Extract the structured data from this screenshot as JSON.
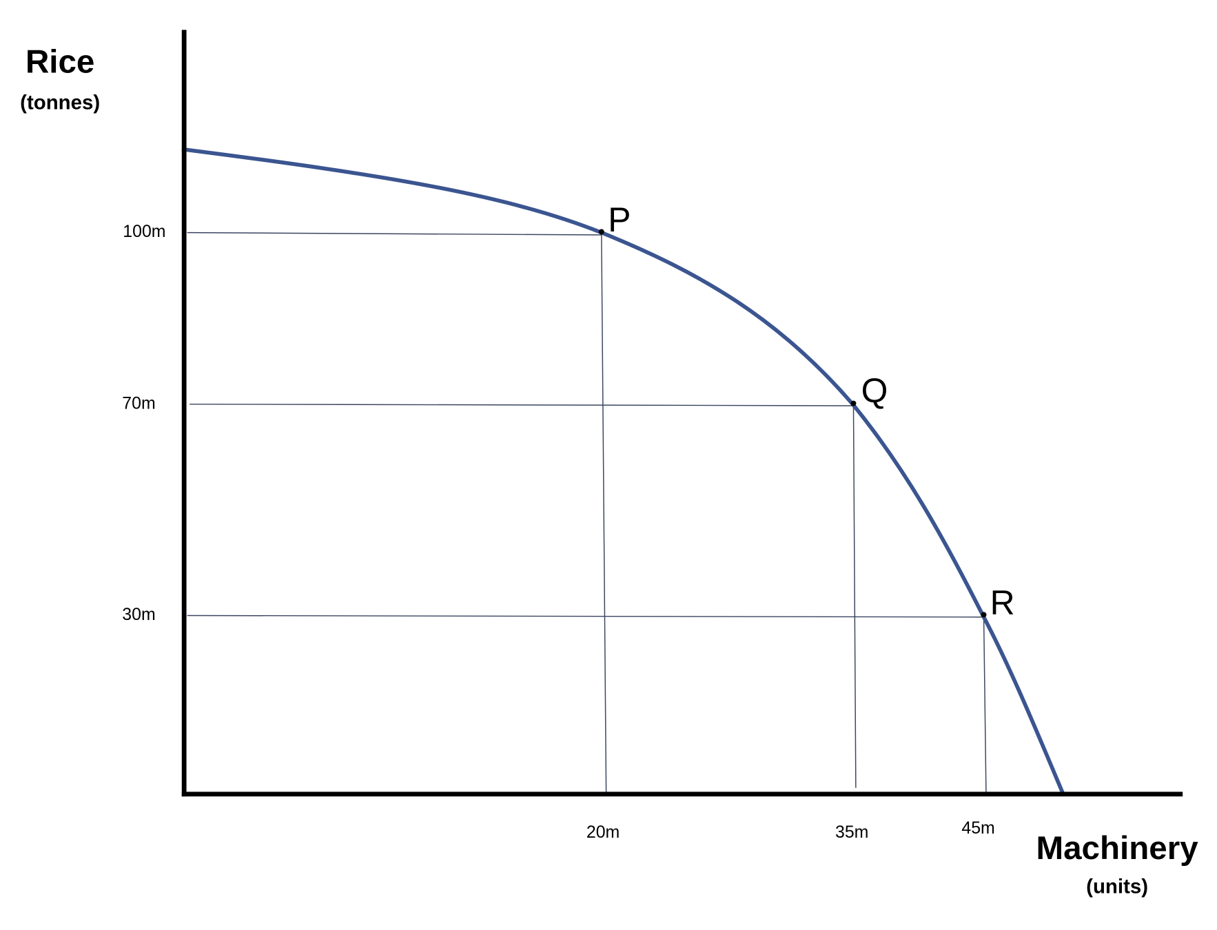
{
  "axes": {
    "y_label": "Rice",
    "y_unit": "(tonnes)",
    "x_label": "Machinery",
    "x_unit": "(units)"
  },
  "y_ticks": [
    "100m",
    "70m",
    "30m"
  ],
  "x_ticks": [
    "20m",
    "35m",
    "45m"
  ],
  "points": [
    "P",
    "Q",
    "R"
  ]
}
